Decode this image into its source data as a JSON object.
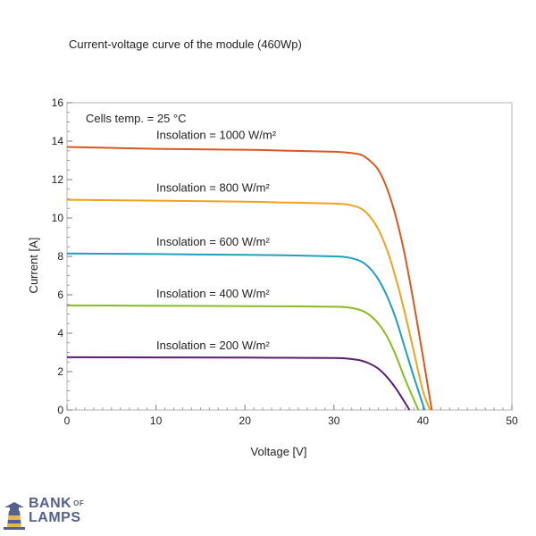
{
  "chart_data": {
    "type": "line",
    "title": "Current-voltage curve of the module (460Wp)",
    "xlabel": "Voltage  [V]",
    "ylabel": "Current  [A]",
    "xlim": [
      0,
      50
    ],
    "ylim": [
      0,
      16
    ],
    "xticks": [
      0,
      10,
      20,
      30,
      40,
      50
    ],
    "yticks": [
      0,
      2,
      4,
      6,
      8,
      10,
      12,
      14,
      16
    ],
    "minor_ticks": true,
    "grid": false,
    "annotation": "Cells temp. = 25 °C",
    "series": [
      {
        "name": "Insolation = 1000 W/m²",
        "color": "#d9581e",
        "x": [
          0,
          10,
          20,
          25,
          30,
          31.5,
          33,
          34,
          35,
          36,
          37,
          38,
          39,
          40,
          40.5,
          41
        ],
        "y": [
          13.7,
          13.6,
          13.55,
          13.5,
          13.45,
          13.4,
          13.3,
          13.0,
          12.5,
          11.5,
          10.0,
          8.0,
          5.5,
          2.8,
          1.4,
          0
        ]
      },
      {
        "name": "Insolation = 800 W/m²",
        "color": "#f0a21e",
        "x": [
          0,
          10,
          20,
          25,
          30,
          31.5,
          33,
          34,
          35,
          36,
          37,
          38,
          39,
          40,
          40.8
        ],
        "y": [
          10.95,
          10.9,
          10.85,
          10.8,
          10.75,
          10.7,
          10.5,
          10.1,
          9.4,
          8.3,
          6.8,
          5.0,
          3.0,
          1.0,
          0
        ]
      },
      {
        "name": "Insolation = 600 W/m²",
        "color": "#1e9fbf",
        "x": [
          0,
          10,
          20,
          25,
          30,
          31.5,
          33,
          34,
          35,
          36,
          37,
          38,
          39,
          40.2
        ],
        "y": [
          8.15,
          8.12,
          8.08,
          8.05,
          8.0,
          7.95,
          7.75,
          7.4,
          6.8,
          5.9,
          4.7,
          3.2,
          1.7,
          0
        ]
      },
      {
        "name": "Insolation = 400 W/m²",
        "color": "#8abd1f",
        "x": [
          0,
          10,
          20,
          25,
          30,
          31.5,
          33,
          34,
          35,
          36,
          37,
          38,
          39.5
        ],
        "y": [
          5.45,
          5.43,
          5.41,
          5.4,
          5.38,
          5.35,
          5.2,
          4.95,
          4.5,
          3.8,
          2.8,
          1.6,
          0
        ]
      },
      {
        "name": "Insolation = 200 W/m²",
        "color": "#5a1e6e",
        "x": [
          0,
          10,
          20,
          25,
          30,
          31.5,
          33,
          34,
          35,
          36,
          37,
          38.5
        ],
        "y": [
          2.75,
          2.74,
          2.73,
          2.72,
          2.71,
          2.68,
          2.58,
          2.42,
          2.15,
          1.7,
          1.1,
          0
        ]
      }
    ]
  },
  "watermark": {
    "line1": "BANK",
    "line1_suffix": "OF",
    "line2": "LAMPS",
    "color": "#55608f"
  }
}
